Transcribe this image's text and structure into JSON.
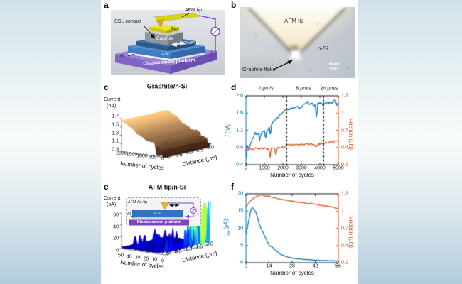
{
  "figure": {
    "panel_labels": {
      "a": "a",
      "b": "b",
      "c": "c",
      "d": "d",
      "e": "e",
      "f": "f"
    },
    "panel_a": {
      "afm_tip": "AFM tip",
      "ssl_contact": "SSL-contact",
      "au": "Au",
      "graphite": "Graphite",
      "sliding": "Sliding",
      "n_si": "n-Si",
      "al": "Al",
      "platform": "Displacement platform"
    },
    "panel_b": {
      "afm_tip": "AFM tip",
      "n_si": "n-Si",
      "graphite_flake": "Graphite flake",
      "scale_bar": "4μm"
    }
  },
  "chart_data": [
    {
      "panel": "c",
      "type": "surface3d",
      "title": "Graphite/n-Si",
      "colormap": "copper",
      "z_axis": {
        "label_line1": "Current",
        "label_line2": "(nA)",
        "ticks": [
          "1.7",
          "1.5",
          "1.3",
          "1.1",
          "0.9"
        ],
        "range": [
          0.9,
          1.7
        ]
      },
      "x_axis": {
        "label": "Number of cycles",
        "ticks": [
          "2000",
          "1500",
          "1000",
          "500",
          "0"
        ],
        "range": [
          0,
          2000
        ]
      },
      "y_axis": {
        "label": "Distance (μm)",
        "ticks": [
          "0",
          "0.5",
          "1.0",
          "1.5",
          "2.0"
        ],
        "range": [
          0,
          2
        ]
      },
      "surface_trend": {
        "z_at_cycle0": 1.05,
        "z_at_cycle2000": 1.66,
        "row_noise": 0.07,
        "front_dips_to": 0.9,
        "description": "current ridge surface rises with sliding cycles; dark low-current streaks near early cycles"
      }
    },
    {
      "panel": "d",
      "type": "line_dual_axis",
      "x_axis": {
        "label": "Number of cycles",
        "ticks": [
          "0",
          "1000",
          "2000",
          "3000",
          "4000",
          "5000"
        ],
        "range": [
          0,
          5000
        ]
      },
      "left_axis": {
        "label_main": "I",
        "label_unit": " (nA)",
        "ticks": [
          "2.0",
          "1.6",
          "1.2",
          "0.8",
          "0.4"
        ],
        "range": [
          0.4,
          2.0
        ],
        "color": "#0072BD"
      },
      "right_axis": {
        "label": "Friction (μN)",
        "ticks": [
          "1.3",
          "1",
          "0.7",
          "0.4",
          "0.1"
        ],
        "range": [
          0.1,
          1.3
        ],
        "color": "#D95319"
      },
      "speed_regions": [
        {
          "label": "4 μm/s",
          "boundary_cycle": 2200
        },
        {
          "label": "8 μm/s",
          "boundary_cycle": 4200
        },
        {
          "label": "24 μm/s",
          "boundary_cycle": null
        }
      ],
      "series": [
        {
          "name": "current",
          "axis": "left",
          "color": "#0072BD",
          "points": [
            [
              0,
              0.52
            ],
            [
              30,
              0.72
            ],
            [
              80,
              0.85
            ],
            [
              130,
              0.8
            ],
            [
              200,
              0.82
            ],
            [
              280,
              0.9
            ],
            [
              360,
              1.0
            ],
            [
              450,
              1.1
            ],
            [
              500,
              1.15
            ],
            [
              560,
              1.12
            ],
            [
              620,
              1.1
            ],
            [
              700,
              1.14
            ],
            [
              740,
              0.9
            ],
            [
              780,
              1.1
            ],
            [
              850,
              1.13
            ],
            [
              950,
              1.16
            ],
            [
              1020,
              1.18
            ],
            [
              1060,
              0.95
            ],
            [
              1100,
              1.16
            ],
            [
              1200,
              1.22
            ],
            [
              1280,
              1.3
            ],
            [
              1320,
              1.05
            ],
            [
              1380,
              1.32
            ],
            [
              1450,
              1.38
            ],
            [
              1550,
              1.42
            ],
            [
              1650,
              1.47
            ],
            [
              1750,
              1.52
            ],
            [
              1850,
              1.57
            ],
            [
              1950,
              1.6
            ],
            [
              2050,
              1.63
            ],
            [
              2150,
              1.66
            ],
            [
              2250,
              1.68
            ],
            [
              2350,
              1.7
            ],
            [
              2450,
              1.71
            ],
            [
              2550,
              1.7
            ],
            [
              2650,
              1.72
            ],
            [
              2750,
              1.74
            ],
            [
              2850,
              1.73
            ],
            [
              2950,
              1.72
            ],
            [
              3050,
              1.76
            ],
            [
              3150,
              1.8
            ],
            [
              3250,
              1.84
            ],
            [
              3350,
              1.86
            ],
            [
              3450,
              1.8
            ],
            [
              3550,
              1.82
            ],
            [
              3650,
              1.79
            ],
            [
              3750,
              1.78
            ],
            [
              3820,
              1.45
            ],
            [
              3880,
              1.8
            ],
            [
              3950,
              1.83
            ],
            [
              4050,
              1.85
            ],
            [
              4150,
              1.8
            ],
            [
              4250,
              1.83
            ],
            [
              4350,
              1.86
            ],
            [
              4450,
              1.82
            ],
            [
              4550,
              1.86
            ],
            [
              4650,
              1.84
            ],
            [
              4750,
              1.88
            ],
            [
              4850,
              1.9
            ],
            [
              4920,
              1.78
            ],
            [
              5000,
              1.86
            ]
          ]
        },
        {
          "name": "friction",
          "axis": "right",
          "color": "#D95319",
          "points": [
            [
              0,
              0.43
            ],
            [
              60,
              0.36
            ],
            [
              150,
              0.37
            ],
            [
              250,
              0.38
            ],
            [
              350,
              0.37
            ],
            [
              450,
              0.38
            ],
            [
              550,
              0.39
            ],
            [
              650,
              0.38
            ],
            [
              750,
              0.37
            ],
            [
              850,
              0.39
            ],
            [
              950,
              0.38
            ],
            [
              1050,
              0.39
            ],
            [
              1150,
              0.37
            ],
            [
              1250,
              0.38
            ],
            [
              1300,
              0.22
            ],
            [
              1360,
              0.38
            ],
            [
              1450,
              0.39
            ],
            [
              1550,
              0.38
            ],
            [
              1620,
              0.28
            ],
            [
              1700,
              0.39
            ],
            [
              1800,
              0.4
            ],
            [
              1900,
              0.39
            ],
            [
              2000,
              0.41
            ],
            [
              2100,
              0.4
            ],
            [
              2200,
              0.44
            ],
            [
              2300,
              0.45
            ],
            [
              2400,
              0.44
            ],
            [
              2500,
              0.45
            ],
            [
              2600,
              0.44
            ],
            [
              2700,
              0.46
            ],
            [
              2800,
              0.45
            ],
            [
              2900,
              0.44
            ],
            [
              3000,
              0.45
            ],
            [
              3100,
              0.46
            ],
            [
              3200,
              0.45
            ],
            [
              3300,
              0.46
            ],
            [
              3400,
              0.44
            ],
            [
              3500,
              0.46
            ],
            [
              3600,
              0.45
            ],
            [
              3700,
              0.44
            ],
            [
              3800,
              0.41
            ],
            [
              3900,
              0.46
            ],
            [
              4000,
              0.46
            ],
            [
              4100,
              0.47
            ],
            [
              4200,
              0.48
            ],
            [
              4300,
              0.48
            ],
            [
              4400,
              0.49
            ],
            [
              4500,
              0.49
            ],
            [
              4600,
              0.5
            ],
            [
              4700,
              0.5
            ],
            [
              4800,
              0.51
            ],
            [
              4900,
              0.51
            ],
            [
              5000,
              0.52
            ]
          ]
        }
      ]
    },
    {
      "panel": "e",
      "type": "surface3d",
      "title": "AFM tip/n-Si",
      "colormap": "jet",
      "z_axis": {
        "label_line1": "Current",
        "label_line2": "(pA)",
        "ticks": [
          "60",
          "40",
          "20",
          "0"
        ],
        "range": [
          0,
          60
        ]
      },
      "x_axis": {
        "label": "Number of cycles",
        "ticks": [
          "50",
          "40",
          "30",
          "20",
          "10",
          "0"
        ],
        "range": [
          0,
          50
        ]
      },
      "y_axis": {
        "label": "Distance (μm)",
        "ticks": [
          "0",
          "0.5",
          "1.0",
          "1.5",
          "2.0"
        ],
        "range": [
          0,
          2
        ]
      },
      "surface_trend": {
        "baseline_pA": 2,
        "spike_peak_pA": 65,
        "spike_decay_cycles": 7,
        "description": "tall current spikes during the first ~10 cycles that decay away; flat low background after"
      },
      "inset": {
        "afm_au_tip": "AFM Au-tip",
        "al": "Al",
        "n_si": "n-Si",
        "platform": "Displacement platform"
      }
    },
    {
      "panel": "f",
      "type": "line_dual_axis",
      "x_axis": {
        "label": "Number of cycles",
        "ticks": [
          "0",
          "14",
          "28",
          "42",
          "56"
        ],
        "range": [
          0,
          56
        ]
      },
      "left_axis": {
        "label_main": "I",
        "label_sub": "av",
        "label_unit": " (pA)",
        "ticks": [
          "20",
          "15",
          "10",
          "5",
          "0"
        ],
        "range": [
          0,
          20
        ],
        "color": "#0072BD"
      },
      "right_axis": {
        "label": "Friction (μN)",
        "ticks": [
          "1.3",
          "1",
          "0.7",
          "0.4",
          "0.1"
        ],
        "range": [
          0.1,
          1.3
        ],
        "color": "#D95319"
      },
      "series": [
        {
          "name": "current",
          "axis": "left",
          "color": "#0072BD",
          "points": [
            [
              0,
              8.3
            ],
            [
              1,
              10.6
            ],
            [
              2,
              13.0
            ],
            [
              3,
              15.2
            ],
            [
              4,
              16.1
            ],
            [
              5,
              15.2
            ],
            [
              6,
              14.7
            ],
            [
              7,
              13.1
            ],
            [
              8,
              11.4
            ],
            [
              9,
              10.1
            ],
            [
              10,
              9.1
            ],
            [
              11,
              8.1
            ],
            [
              12,
              7.1
            ],
            [
              13,
              6.1
            ],
            [
              14,
              5.2
            ],
            [
              15,
              4.8
            ],
            [
              16,
              4.5
            ],
            [
              17,
              4.1
            ],
            [
              18,
              3.6
            ],
            [
              19,
              3.2
            ],
            [
              20,
              2.7
            ],
            [
              22,
              2.2
            ],
            [
              24,
              1.9
            ],
            [
              26,
              1.6
            ],
            [
              28,
              1.35
            ],
            [
              30,
              1.2
            ],
            [
              32,
              1.1
            ],
            [
              34,
              1.0
            ],
            [
              36,
              0.9
            ],
            [
              38,
              0.85
            ],
            [
              40,
              0.8
            ],
            [
              42,
              0.75
            ],
            [
              44,
              0.7
            ],
            [
              46,
              0.65
            ],
            [
              48,
              0.6
            ],
            [
              50,
              0.58
            ],
            [
              52,
              0.55
            ],
            [
              54,
              0.52
            ],
            [
              56,
              0.5
            ]
          ]
        },
        {
          "name": "friction",
          "axis": "right",
          "color": "#D95319",
          "points": [
            [
              0,
              1.07
            ],
            [
              1,
              1.11
            ],
            [
              2,
              1.15
            ],
            [
              3,
              1.18
            ],
            [
              4,
              1.21
            ],
            [
              5,
              1.23
            ],
            [
              6,
              1.25
            ],
            [
              7,
              1.26
            ],
            [
              8,
              1.27
            ],
            [
              9,
              1.28
            ],
            [
              10,
              1.28
            ],
            [
              11,
              1.27
            ],
            [
              12,
              1.26
            ],
            [
              13,
              1.26
            ],
            [
              14,
              1.26
            ],
            [
              15,
              1.25
            ],
            [
              16,
              1.24
            ],
            [
              17,
              1.23
            ],
            [
              18,
              1.23
            ],
            [
              19,
              1.22
            ],
            [
              20,
              1.21
            ],
            [
              22,
              1.2
            ],
            [
              24,
              1.19
            ],
            [
              26,
              1.18
            ],
            [
              28,
              1.17
            ],
            [
              30,
              1.16
            ],
            [
              32,
              1.15
            ],
            [
              34,
              1.15
            ],
            [
              36,
              1.14
            ],
            [
              38,
              1.13
            ],
            [
              40,
              1.13
            ],
            [
              42,
              1.12
            ],
            [
              44,
              1.11
            ],
            [
              46,
              1.1
            ],
            [
              48,
              1.09
            ],
            [
              50,
              1.08
            ],
            [
              52,
              1.07
            ],
            [
              54,
              1.06
            ],
            [
              56,
              1.03
            ]
          ]
        }
      ]
    }
  ]
}
